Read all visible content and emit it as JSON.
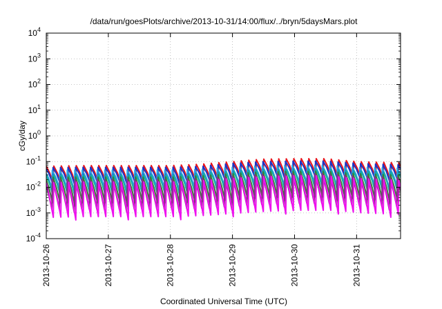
{
  "chart_data": {
    "type": "line",
    "title": "/data/run/goesPlots/archive/2013-10-31/14:00/flux/../bryn/5daysMars.plot",
    "xlabel": "Coordinated Universal Time (UTC)",
    "ylabel": "cGy/day",
    "y_scale": "log",
    "ylim": [
      0.0001,
      10000
    ],
    "xlim": [
      "2013-10-26",
      "2013-10-31 17:00"
    ],
    "x_ticks": [
      "2013-10-26",
      "2013-10-27",
      "2013-10-28",
      "2013-10-29",
      "2013-10-30",
      "2013-10-31"
    ],
    "y_ticks": [
      {
        "base": "10",
        "exp": "-4",
        "value": 0.0001
      },
      {
        "base": "10",
        "exp": "-3",
        "value": 0.001
      },
      {
        "base": "10",
        "exp": "-2",
        "value": 0.01
      },
      {
        "base": "10",
        "exp": "-1",
        "value": 0.1
      },
      {
        "base": "10",
        "exp": "0",
        "value": 1
      },
      {
        "base": "10",
        "exp": "1",
        "value": 10
      },
      {
        "base": "10",
        "exp": "2",
        "value": 100
      },
      {
        "base": "10",
        "exp": "3",
        "value": 1000
      },
      {
        "base": "10",
        "exp": "4",
        "value": 10000
      }
    ],
    "grid": true,
    "legend": "none",
    "sawtooth_period_hours": 2.9,
    "series": [
      {
        "color": "#e8141c",
        "envelope_days": [
          0,
          0.5,
          1,
          1.5,
          2,
          2.5,
          3,
          3.5,
          4,
          4.5,
          5,
          5.7
        ],
        "peak": [
          0.066,
          0.07,
          0.07,
          0.07,
          0.07,
          0.08,
          0.1,
          0.125,
          0.13,
          0.13,
          0.1,
          0.09
        ],
        "trough_ratio": 0.22
      },
      {
        "color": "#1a35c8",
        "envelope_days": [
          0,
          0.5,
          1,
          1.5,
          2,
          2.5,
          3,
          3.5,
          4,
          4.5,
          5,
          5.7
        ],
        "peak": [
          0.058,
          0.06,
          0.06,
          0.06,
          0.06,
          0.065,
          0.085,
          0.1,
          0.105,
          0.105,
          0.085,
          0.075
        ],
        "trough_ratio": 0.25
      },
      {
        "color": "#2aa0e0",
        "envelope_days": [
          0,
          0.5,
          1,
          1.5,
          2,
          2.5,
          3,
          3.5,
          4,
          4.5,
          5,
          5.7
        ],
        "peak": [
          0.045,
          0.047,
          0.047,
          0.047,
          0.047,
          0.05,
          0.06,
          0.07,
          0.072,
          0.072,
          0.06,
          0.055
        ],
        "trough_ratio": 0.22
      },
      {
        "color": "#12b0a0",
        "envelope_days": [
          0,
          0.5,
          1,
          1.5,
          2,
          2.5,
          3,
          3.5,
          4,
          4.5,
          5,
          5.7
        ],
        "peak": [
          0.03,
          0.03,
          0.03,
          0.03,
          0.03,
          0.034,
          0.042,
          0.048,
          0.05,
          0.05,
          0.042,
          0.038
        ],
        "trough_ratio": 0.14
      },
      {
        "color": "#3a7a3a",
        "envelope_days": [
          0,
          0.5,
          1,
          1.5,
          2,
          2.5,
          3,
          3.5,
          4,
          4.5,
          5,
          5.7
        ],
        "peak": [
          0.025,
          0.025,
          0.025,
          0.025,
          0.025,
          0.028,
          0.034,
          0.04,
          0.042,
          0.042,
          0.034,
          0.03
        ],
        "trough_ratio": 0.1
      },
      {
        "color": "#8b2a8b",
        "envelope_days": [
          0,
          0.5,
          1,
          1.5,
          2,
          2.5,
          3,
          3.5,
          4,
          4.5,
          5,
          5.7
        ],
        "peak": [
          0.02,
          0.02,
          0.02,
          0.02,
          0.02,
          0.022,
          0.027,
          0.032,
          0.034,
          0.034,
          0.027,
          0.024
        ],
        "trough_ratio": 0.07
      },
      {
        "color": "#ee10ee",
        "envelope_days": [
          0,
          0.5,
          1,
          1.5,
          2,
          2.5,
          3,
          3.5,
          4,
          4.5,
          5,
          5.7
        ],
        "peak": [
          0.015,
          0.016,
          0.016,
          0.016,
          0.016,
          0.018,
          0.022,
          0.026,
          0.028,
          0.028,
          0.022,
          0.019
        ],
        "trough_ratio": 0.045
      }
    ]
  }
}
